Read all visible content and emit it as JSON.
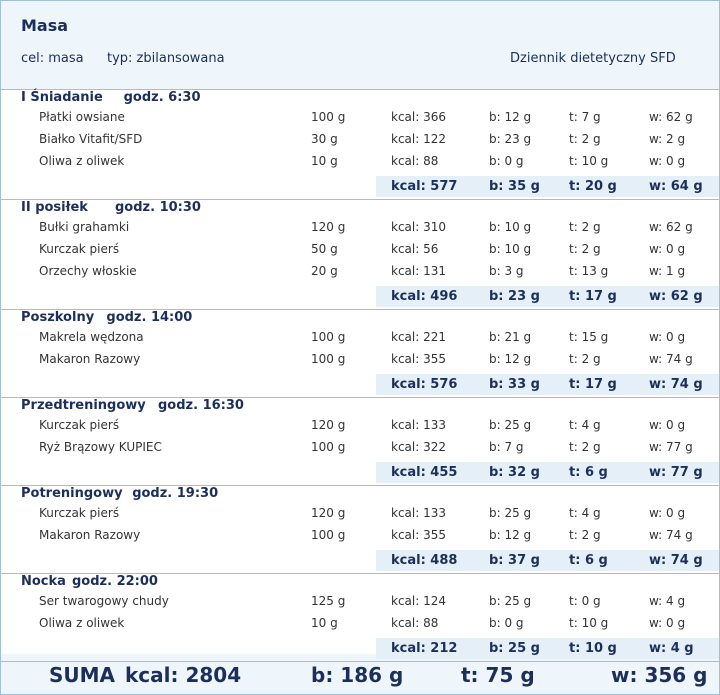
{
  "header": {
    "title": "Masa",
    "goal": "cel: masa",
    "type": "typ: zbilansowana",
    "journal": "Dziennik dietetyczny SFD"
  },
  "meals": [
    {
      "name": "I Śniadanie",
      "time": "godz. 6:30",
      "items": [
        [
          "Płatki owsiane",
          "100 g",
          "kcal: 366",
          "b: 12 g",
          "t: 7 g",
          "w: 62 g"
        ],
        [
          "Białko Vitafit/SFD",
          "30 g",
          "kcal: 122",
          "b: 23 g",
          "t: 2 g",
          "w: 2 g"
        ],
        [
          "Oliwa z oliwek",
          "10 g",
          "kcal: 88",
          "b: 0 g",
          "t: 10 g",
          "w: 0 g"
        ]
      ],
      "total": [
        "kcal: 577",
        "b: 35 g",
        "t: 20 g",
        "w: 64 g"
      ]
    },
    {
      "name": "II posiłek",
      "time": "godz. 10:30",
      "items": [
        [
          "Bułki grahamki",
          "120 g",
          "kcal: 310",
          "b: 10 g",
          "t: 2 g",
          "w: 62 g"
        ],
        [
          "Kurczak pierś",
          "50 g",
          "kcal: 56",
          "b: 10 g",
          "t: 2 g",
          "w: 0 g"
        ],
        [
          "Orzechy włoskie",
          "20 g",
          "kcal: 131",
          "b: 3 g",
          "t: 13 g",
          "w: 1 g"
        ]
      ],
      "total": [
        "kcal: 496",
        "b: 23 g",
        "t: 17 g",
        "w: 62 g"
      ]
    },
    {
      "name": "Poszkolny",
      "time": "godz. 14:00",
      "items": [
        [
          "Makrela wędzona",
          "100 g",
          "kcal: 221",
          "b: 21 g",
          "t: 15 g",
          "w: 0 g"
        ],
        [
          "Makaron Razowy",
          "100 g",
          "kcal: 355",
          "b: 12 g",
          "t: 2 g",
          "w: 74 g"
        ]
      ],
      "total": [
        "kcal: 576",
        "b: 33 g",
        "t: 17 g",
        "w: 74 g"
      ]
    },
    {
      "name": "Przedtreningowy",
      "time": "godz. 16:30",
      "items": [
        [
          "Kurczak pierś",
          "120 g",
          "kcal: 133",
          "b: 25 g",
          "t: 4 g",
          "w: 0 g"
        ],
        [
          "Ryż Brązowy KUPIEC",
          "100 g",
          "kcal: 322",
          "b: 7 g",
          "t: 2 g",
          "w: 77 g"
        ]
      ],
      "total": [
        "kcal: 455",
        "b: 32 g",
        "t: 6 g",
        "w: 77 g"
      ]
    },
    {
      "name": "Potreningowy",
      "time": "godz. 19:30",
      "items": [
        [
          "Kurczak pierś",
          "120 g",
          "kcal: 133",
          "b: 25 g",
          "t: 4 g",
          "w: 0 g"
        ],
        [
          "Makaron Razowy",
          "100 g",
          "kcal: 355",
          "b: 12 g",
          "t: 2 g",
          "w: 74 g"
        ]
      ],
      "total": [
        "kcal: 488",
        "b: 37 g",
        "t: 6 g",
        "w: 74 g"
      ]
    },
    {
      "name": "Nocka",
      "time": "godz. 22:00",
      "items": [
        [
          "Ser twarogowy chudy",
          "125 g",
          "kcal: 124",
          "b: 25 g",
          "t: 0 g",
          "w: 4 g"
        ],
        [
          "Oliwa z oliwek",
          "10 g",
          "kcal: 88",
          "b: 0 g",
          "t: 10 g",
          "w: 0 g"
        ]
      ],
      "total": [
        "kcal: 212",
        "b: 25 g",
        "t: 10 g",
        "w: 4 g"
      ]
    }
  ],
  "summary": {
    "label": "SUMA",
    "kcal": "kcal: 2804",
    "b": "b: 186 g",
    "t": "t: 75 g",
    "w": "w: 356 g"
  }
}
